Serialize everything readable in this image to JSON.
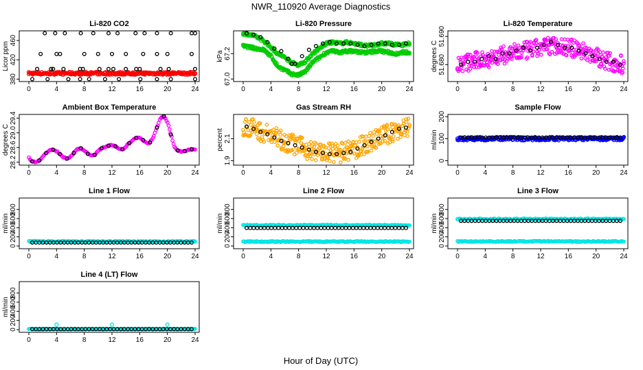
{
  "figure": {
    "title": "NWR_110920  Average Diagnostics",
    "xlabel": "Hour of Day (UTC)"
  },
  "colors": {
    "black": "#000000",
    "red": "#ff0000",
    "green": "#00cc00",
    "magenta": "#ff00ff",
    "orange": "#ffa500",
    "blue": "#0000ff",
    "cyan": "#00e5e5"
  },
  "chart_data": [
    {
      "type": "scatter",
      "title": "Li-820 CO2",
      "ylabel": "Licor ppm",
      "xticks": [
        "0",
        "4",
        "8",
        "12",
        "16",
        "20",
        "24"
      ],
      "yticks": [
        "380",
        "420",
        "460"
      ],
      "xlim": [
        0,
        24
      ],
      "ylim": [
        375,
        480
      ],
      "series": [
        {
          "name": "fine",
          "color": "red",
          "style": "band",
          "from": [
            0,
            392
          ],
          "to": [
            24,
            392
          ],
          "spread": 3
        },
        {
          "name": "hourly-top",
          "color": "black",
          "style": "points",
          "x": [
            2.3,
            3.8,
            5.2,
            7.5,
            9.3,
            11.5,
            12.8,
            15.4,
            16.7,
            18.5,
            20.5,
            23.5,
            24.0
          ],
          "y": [
            475,
            475,
            475,
            475,
            475,
            475,
            475,
            475,
            475,
            475,
            475,
            475,
            475
          ]
        },
        {
          "name": "hourly-mid",
          "color": "black",
          "style": "points",
          "x": [
            1.7,
            4.0,
            4.5,
            8.0,
            10.0,
            12.0,
            14.0,
            16.5,
            18.5,
            20.0,
            23.5
          ],
          "y": [
            432,
            432,
            432,
            432,
            432,
            432,
            432,
            432,
            432,
            432,
            432
          ]
        },
        {
          "name": "hourly-low",
          "color": "black",
          "style": "points",
          "x": [
            1.2,
            3.2,
            3.5,
            5.0,
            7.4,
            7.8,
            10.2,
            11.5,
            12.2,
            14.0,
            15.5,
            16.0,
            19.0,
            20.2,
            24.0
          ],
          "y": [
            401,
            401,
            401,
            401,
            401,
            401,
            401,
            401,
            401,
            401,
            401,
            401,
            401,
            401,
            401
          ]
        },
        {
          "name": "hourly-bottom",
          "color": "black",
          "style": "points",
          "x": [
            0.5,
            2.7,
            5.7,
            7.4,
            8.7,
            11.0,
            13.0,
            16.1,
            18.5,
            20.5,
            24.0
          ],
          "y": [
            380,
            380,
            380,
            380,
            380,
            380,
            380,
            380,
            380,
            380,
            380
          ]
        }
      ]
    },
    {
      "type": "scatter",
      "title": "Li-820 Pressure",
      "ylabel": "kPa",
      "xticks": [
        "0",
        "4",
        "8",
        "12",
        "16",
        "20",
        "24"
      ],
      "yticks": [
        "67.0",
        "67.2"
      ],
      "xlim": [
        0,
        24
      ],
      "ylim": [
        66.98,
        67.38
      ],
      "series": [
        {
          "name": "upper",
          "color": "green",
          "style": "band",
          "spread": 0.012,
          "x": [
            0,
            1,
            2,
            3,
            4,
            5,
            6,
            7,
            8,
            9,
            10,
            11,
            12,
            13,
            14,
            15,
            16,
            17,
            18,
            19,
            20,
            21,
            22,
            23,
            24
          ],
          "y": [
            67.36,
            67.35,
            67.33,
            67.3,
            67.25,
            67.2,
            67.17,
            67.13,
            67.11,
            67.14,
            67.2,
            67.24,
            67.28,
            67.29,
            67.28,
            67.29,
            67.28,
            67.27,
            67.26,
            67.27,
            67.28,
            67.28,
            67.27,
            67.27,
            67.28
          ]
        },
        {
          "name": "lower",
          "color": "green",
          "style": "band",
          "spread": 0.012,
          "x": [
            0,
            1,
            2,
            3,
            4,
            5,
            6,
            7,
            8,
            9,
            10,
            11,
            12,
            13,
            14,
            15,
            16,
            17,
            18,
            19,
            20,
            21,
            22,
            23,
            24
          ],
          "y": [
            67.26,
            67.25,
            67.24,
            67.23,
            67.18,
            67.1,
            67.07,
            67.04,
            67.03,
            67.06,
            67.13,
            67.17,
            67.21,
            67.22,
            67.21,
            67.22,
            67.22,
            67.21,
            67.21,
            67.22,
            67.22,
            67.21,
            67.2,
            67.21,
            67.21
          ]
        },
        {
          "name": "hourly",
          "color": "black",
          "style": "points",
          "x": [
            0.5,
            1.5,
            2.5,
            3.5,
            4.5,
            5.5,
            6.5,
            7.0,
            7.5,
            8.5,
            9.5,
            10.5,
            11.5,
            12.5,
            13.5,
            14.5,
            15.5,
            16.5,
            17.5,
            18.5,
            19.5,
            20.5,
            21.5,
            22.5,
            23.5
          ],
          "y": [
            67.36,
            67.35,
            67.33,
            67.29,
            67.24,
            67.22,
            67.16,
            67.12,
            67.12,
            67.18,
            67.23,
            67.26,
            67.28,
            67.29,
            67.28,
            67.28,
            67.28,
            67.27,
            67.26,
            67.27,
            67.28,
            67.28,
            67.27,
            67.27,
            67.28
          ]
        }
      ]
    },
    {
      "type": "scatter",
      "title": "Li-820 Temperature",
      "ylabel": "degrees C",
      "xticks": [
        "0",
        "4",
        "8",
        "12",
        "16",
        "20",
        "24"
      ],
      "yticks": [
        "51.680",
        "51.690"
      ],
      "xlim": [
        0,
        24
      ],
      "ylim": [
        51.674,
        51.692
      ],
      "series": [
        {
          "name": "fine",
          "color": "magenta",
          "style": "band",
          "spread": 0.0032,
          "x": [
            0,
            2,
            4,
            6,
            8,
            10,
            12,
            14,
            16,
            18,
            20,
            22,
            24
          ],
          "y": [
            51.68,
            51.681,
            51.682,
            51.683,
            51.684,
            51.685,
            51.686,
            51.687,
            51.686,
            51.685,
            51.683,
            51.681,
            51.68
          ]
        },
        {
          "name": "hourly",
          "color": "black",
          "style": "points",
          "x": [
            0.5,
            1.5,
            2.5,
            3.5,
            4.5,
            5.5,
            6.5,
            7.5,
            8.5,
            9.5,
            10.5,
            11.5,
            12.5,
            13.5,
            14.5,
            15.5,
            16.5,
            17.5,
            18.5,
            19.5,
            20.5,
            21.5,
            22.5,
            23.5
          ],
          "y": [
            51.68,
            51.681,
            51.681,
            51.682,
            51.683,
            51.682,
            51.684,
            51.684,
            51.685,
            51.686,
            51.685,
            51.686,
            51.687,
            51.688,
            51.687,
            51.686,
            51.686,
            51.685,
            51.684,
            51.683,
            51.682,
            51.681,
            51.681,
            51.68
          ]
        }
      ]
    },
    {
      "type": "scatter",
      "title": "Ambient Box Temperature",
      "ylabel": "degrees C",
      "xticks": [
        "0",
        "4",
        "8",
        "12",
        "16",
        "20",
        "24"
      ],
      "yticks": [
        "28.2",
        "28.6",
        "29.0",
        "29.4"
      ],
      "xlim": [
        0,
        24
      ],
      "ylim": [
        28.12,
        29.5
      ],
      "series": [
        {
          "name": "fine",
          "color": "magenta",
          "style": "band",
          "spread": 0.015,
          "x": [
            0,
            0.5,
            1,
            1.5,
            2,
            2.5,
            3,
            3.5,
            4,
            4.5,
            5,
            5.5,
            6,
            6.5,
            7,
            7.5,
            8,
            8.5,
            9,
            9.5,
            10,
            10.5,
            11,
            11.5,
            12,
            12.5,
            13,
            13.5,
            14,
            14.5,
            15,
            15.5,
            16,
            16.5,
            17,
            17.5,
            18,
            18.5,
            19,
            19.5,
            20,
            20.5,
            21,
            21.5,
            22,
            22.5,
            23,
            23.5,
            24
          ],
          "y": [
            28.32,
            28.22,
            28.2,
            28.25,
            28.35,
            28.45,
            28.52,
            28.54,
            28.5,
            28.42,
            28.33,
            28.3,
            28.35,
            28.45,
            28.55,
            28.58,
            28.52,
            28.43,
            28.38,
            28.4,
            28.5,
            28.58,
            28.62,
            28.65,
            28.68,
            28.63,
            28.55,
            28.55,
            28.62,
            28.72,
            28.8,
            28.86,
            28.88,
            28.8,
            28.72,
            28.74,
            28.9,
            29.15,
            29.4,
            29.45,
            29.3,
            28.95,
            28.62,
            28.52,
            28.48,
            28.5,
            28.54,
            28.55,
            28.56
          ]
        },
        {
          "name": "hourly",
          "color": "black",
          "style": "points",
          "x": [
            0.5,
            1.5,
            2.5,
            3.5,
            4.5,
            5.5,
            6.5,
            7.5,
            8.5,
            9.5,
            10.5,
            11.5,
            12.5,
            13.5,
            14.5,
            15.5,
            16.5,
            17.5,
            18.5,
            19.5,
            20.5,
            21.5,
            22.5,
            23.5
          ],
          "y": [
            28.22,
            28.25,
            28.45,
            28.54,
            28.42,
            28.3,
            28.45,
            28.58,
            28.43,
            28.4,
            28.58,
            28.65,
            28.63,
            28.55,
            28.72,
            28.86,
            28.8,
            28.74,
            29.15,
            29.45,
            28.95,
            28.52,
            28.5,
            28.55
          ]
        }
      ]
    },
    {
      "type": "scatter",
      "title": "Gas Stream RH",
      "ylabel": "percent",
      "xticks": [
        "0",
        "4",
        "8",
        "12",
        "16",
        "20",
        "24"
      ],
      "yticks": [
        "1.9",
        "2.1"
      ],
      "xlim": [
        0,
        24
      ],
      "ylim": [
        1.86,
        2.32
      ],
      "series": [
        {
          "name": "fine",
          "color": "orange",
          "style": "band",
          "spread": 0.09,
          "x": [
            0,
            2,
            4,
            6,
            8,
            10,
            12,
            14,
            16,
            18,
            20,
            22,
            24
          ],
          "y": [
            2.22,
            2.18,
            2.13,
            2.08,
            2.03,
            1.99,
            1.97,
            1.97,
            2.0,
            2.06,
            2.12,
            2.17,
            2.2
          ]
        },
        {
          "name": "hourly",
          "color": "black",
          "style": "points",
          "x": [
            0.5,
            1.5,
            2.5,
            3.5,
            4.5,
            5.5,
            6.5,
            7.5,
            8.5,
            9.5,
            10.5,
            11.5,
            12.5,
            13.5,
            14.5,
            15.5,
            16.5,
            17.5,
            18.5,
            19.5,
            20.5,
            21.5,
            22.5,
            23.5
          ],
          "y": [
            2.21,
            2.19,
            2.16,
            2.14,
            2.11,
            2.08,
            2.06,
            2.04,
            2.02,
            2.0,
            1.98,
            1.97,
            1.96,
            1.96,
            1.97,
            1.98,
            2.01,
            2.04,
            2.07,
            2.1,
            2.13,
            2.16,
            2.19,
            2.2
          ]
        }
      ]
    },
    {
      "type": "scatter",
      "title": "Sample Flow",
      "ylabel": "ml/min",
      "xticks": [
        "0",
        "4",
        "8",
        "12",
        "16",
        "20",
        "24"
      ],
      "yticks": [
        "0",
        "100",
        "200"
      ],
      "xlim": [
        0,
        24
      ],
      "ylim": [
        -20,
        210
      ],
      "series": [
        {
          "name": "fine",
          "color": "blue",
          "style": "band",
          "from": [
            0,
            100
          ],
          "to": [
            24,
            100
          ],
          "spread": 8
        },
        {
          "name": "hourly",
          "color": "black",
          "style": "points",
          "from": [
            0.5,
            105
          ],
          "to": [
            23.5,
            105
          ],
          "count": 46
        }
      ]
    },
    {
      "type": "scatter",
      "title": "Line 1 Flow",
      "ylabel": "ml/min",
      "xticks": [
        "0",
        "4",
        "8",
        "12",
        "16",
        "20",
        "24"
      ],
      "yticks": [
        "0",
        "200",
        "400",
        "600",
        "800"
      ],
      "xlim": [
        0,
        24
      ],
      "ylim": [
        -60,
        1050
      ],
      "series": [
        {
          "name": "fine",
          "color": "cyan",
          "style": "band",
          "from": [
            0,
            100
          ],
          "to": [
            24,
            100
          ],
          "spread": 12
        },
        {
          "name": "hourly",
          "color": "black",
          "style": "points",
          "from": [
            0.5,
            75
          ],
          "to": [
            23.5,
            75
          ],
          "count": 46
        }
      ]
    },
    {
      "type": "scatter",
      "title": "Line 2 Flow",
      "ylabel": "ml/min",
      "xticks": [
        "0",
        "4",
        "8",
        "12",
        "16",
        "20",
        "24"
      ],
      "yticks": [
        "0",
        "200",
        "400",
        "600",
        "800"
      ],
      "xlim": [
        0,
        24
      ],
      "ylim": [
        -60,
        1050
      ],
      "series": [
        {
          "name": "high",
          "color": "cyan",
          "style": "band",
          "from": [
            0,
            455
          ],
          "to": [
            24,
            455
          ],
          "spread": 12
        },
        {
          "name": "low",
          "color": "cyan",
          "style": "band",
          "from": [
            0,
            95
          ],
          "to": [
            24,
            95
          ],
          "spread": 12
        },
        {
          "name": "hourly",
          "color": "black",
          "style": "points",
          "from": [
            0.5,
            395
          ],
          "to": [
            23.5,
            395
          ],
          "count": 46
        }
      ]
    },
    {
      "type": "scatter",
      "title": "Line 3 Flow",
      "ylabel": "ml/min",
      "xticks": [
        "0",
        "4",
        "8",
        "12",
        "16",
        "20",
        "24"
      ],
      "yticks": [
        "0",
        "200",
        "400",
        "600",
        "800"
      ],
      "xlim": [
        0,
        24
      ],
      "ylim": [
        -60,
        1050
      ],
      "series": [
        {
          "name": "high",
          "color": "cyan",
          "style": "band",
          "from": [
            0,
            590
          ],
          "to": [
            24,
            590
          ],
          "spread": 12
        },
        {
          "name": "low",
          "color": "cyan",
          "style": "band",
          "from": [
            0,
            100
          ],
          "to": [
            24,
            100
          ],
          "spread": 12
        },
        {
          "name": "hourly",
          "color": "black",
          "style": "points",
          "from": [
            0.5,
            550
          ],
          "to": [
            23.5,
            550
          ],
          "count": 46
        }
      ]
    },
    {
      "type": "scatter",
      "title": "Line 4 (LT) Flow",
      "ylabel": "ml/min",
      "xticks": [
        "0",
        "4",
        "8",
        "12",
        "16",
        "20",
        "24"
      ],
      "yticks": [
        "0",
        "200",
        "400",
        "600",
        "800"
      ],
      "xlim": [
        0,
        24
      ],
      "ylim": [
        -60,
        1050
      ],
      "series": [
        {
          "name": "fine",
          "color": "cyan",
          "style": "band",
          "from": [
            0,
            10
          ],
          "to": [
            24,
            10
          ],
          "spread": 8
        },
        {
          "name": "spikes",
          "color": "cyan",
          "style": "points",
          "x": [
            4.0,
            12.0,
            20.0
          ],
          "y": [
            110,
            110,
            110
          ]
        },
        {
          "name": "hourly",
          "color": "black",
          "style": "points",
          "from": [
            0.5,
            10
          ],
          "to": [
            23.5,
            10
          ],
          "count": 46
        }
      ]
    }
  ]
}
